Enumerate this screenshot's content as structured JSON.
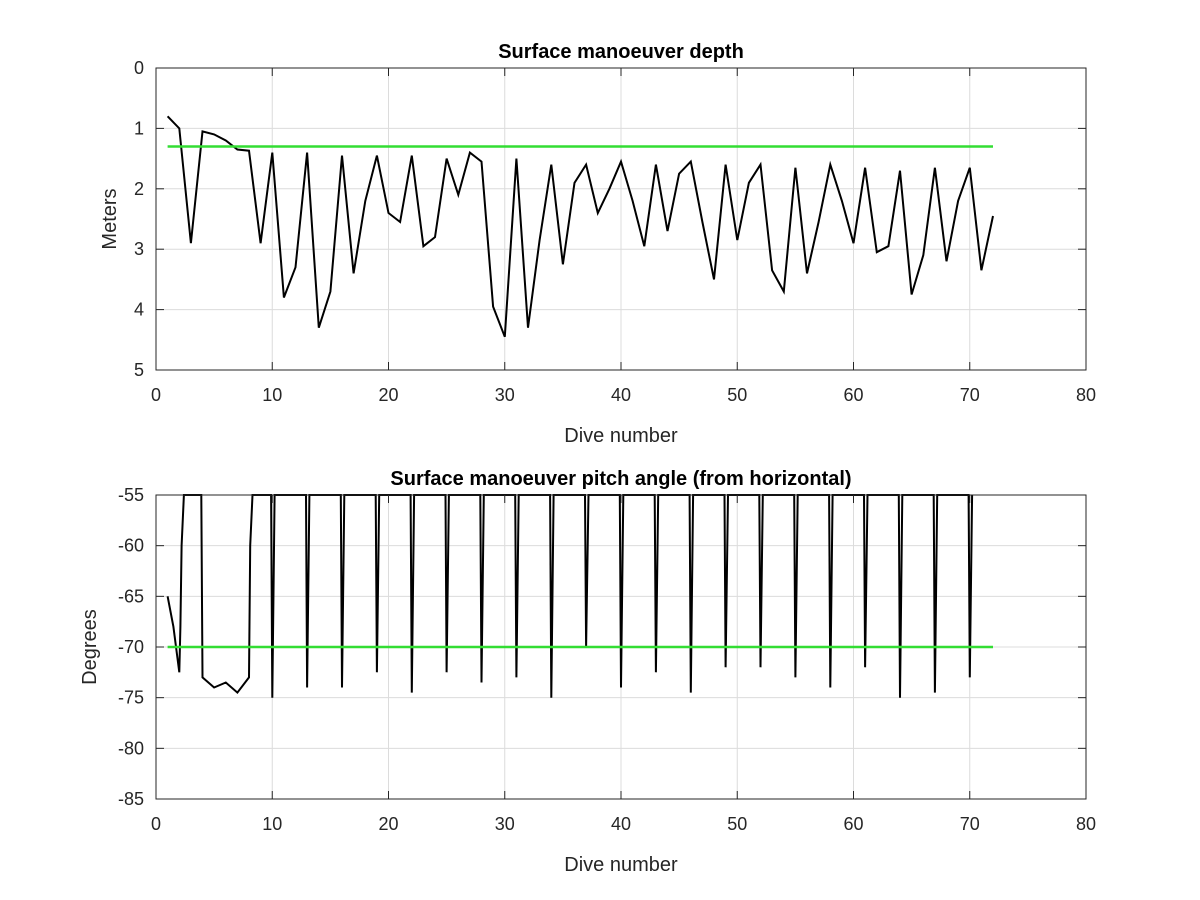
{
  "chart_data": [
    {
      "type": "line",
      "title": "Surface manoeuver depth",
      "xlabel": "Dive number",
      "ylabel": "Meters",
      "xlim": [
        0,
        80
      ],
      "ylim": [
        0,
        5
      ],
      "y_reversed": true,
      "grid": true,
      "xticks": [
        "0",
        "10",
        "20",
        "30",
        "40",
        "50",
        "60",
        "70",
        "80"
      ],
      "yticks": [
        "0",
        "1",
        "2",
        "3",
        "4",
        "5"
      ],
      "x": [
        1,
        2,
        3,
        4,
        5,
        6,
        7,
        8,
        9,
        10,
        11,
        12,
        13,
        14,
        15,
        16,
        17,
        18,
        19,
        20,
        21,
        22,
        23,
        24,
        25,
        26,
        27,
        28,
        29,
        30,
        31,
        32,
        33,
        34,
        35,
        36,
        37,
        38,
        39,
        40,
        41,
        42,
        43,
        44,
        45,
        46,
        47,
        48,
        49,
        50,
        51,
        52,
        53,
        54,
        55,
        56,
        57,
        58,
        59,
        60,
        61,
        62,
        63,
        64,
        65,
        66,
        67,
        68,
        69,
        70,
        71,
        72
      ],
      "series": [
        {
          "color": "#000000",
          "values": [
            0.8,
            1.0,
            2.9,
            1.05,
            1.1,
            1.2,
            1.35,
            1.37,
            2.9,
            1.4,
            3.8,
            3.3,
            1.4,
            4.3,
            3.7,
            1.45,
            3.4,
            2.2,
            1.45,
            2.4,
            2.55,
            1.45,
            2.95,
            2.8,
            1.5,
            2.1,
            1.4,
            1.55,
            3.95,
            4.45,
            1.5,
            4.3,
            2.85,
            1.6,
            3.25,
            1.9,
            1.6,
            2.4,
            2.0,
            1.55,
            2.2,
            2.95,
            1.6,
            2.7,
            1.75,
            1.55,
            2.55,
            3.5,
            1.6,
            2.85,
            1.9,
            1.6,
            3.35,
            3.7,
            1.65,
            3.4,
            2.55,
            1.6,
            2.2,
            2.9,
            1.65,
            3.05,
            2.95,
            1.7,
            3.75,
            3.1,
            1.65,
            3.2,
            2.2,
            1.65,
            3.35,
            2.45
          ]
        },
        {
          "color": "#33dd33",
          "values": [
            1.3,
            1.3
          ],
          "x": [
            1,
            72
          ]
        }
      ]
    },
    {
      "type": "line",
      "title": "Surface manoeuver pitch angle (from horizontal)",
      "xlabel": "Dive number",
      "ylabel": "Degrees",
      "xlim": [
        0,
        80
      ],
      "ylim": [
        -85,
        -55
      ],
      "grid": true,
      "xticks": [
        "0",
        "10",
        "20",
        "30",
        "40",
        "50",
        "60",
        "70",
        "80"
      ],
      "yticks": [
        "-55",
        "-60",
        "-65",
        "-70",
        "-75",
        "-80",
        "-85"
      ],
      "series": [
        {
          "color": "#000000",
          "x": [
            1,
            1.5,
            2,
            2.1,
            2.2,
            2.4,
            3.9,
            4,
            5,
            6,
            7,
            8,
            8.1,
            8.3,
            9.9,
            10,
            10.2,
            12.9,
            13,
            13.2,
            15.9,
            16,
            16.2,
            18.9,
            19,
            19.2,
            21.9,
            22,
            22.2,
            24.9,
            25,
            25.2,
            27.9,
            28,
            28.2,
            30.9,
            31,
            31.2,
            33.9,
            34,
            34.2,
            36.9,
            37,
            37.2,
            39.9,
            40,
            40.2,
            42.9,
            43,
            43.2,
            45.9,
            46,
            46.2,
            48.9,
            49,
            49.2,
            51.9,
            52,
            52.2,
            54.9,
            55,
            55.2,
            57.9,
            58,
            58.2,
            60.9,
            61,
            61.2,
            63.9,
            64,
            64.2,
            66.9,
            67,
            67.2,
            69.9,
            70,
            70.2
          ],
          "values": [
            -65,
            -68,
            -72.5,
            -68,
            -60,
            -55,
            -55,
            -73,
            -74,
            -73.5,
            -74.5,
            -73,
            -60,
            -55,
            -55,
            -75,
            -55,
            -55,
            -74,
            -55,
            -55,
            -74,
            -55,
            -55,
            -72.5,
            -55,
            -55,
            -74.5,
            -55,
            -55,
            -72.5,
            -55,
            -55,
            -73.5,
            -55,
            -55,
            -73,
            -55,
            -55,
            -75,
            -55,
            -55,
            -70,
            -55,
            -55,
            -74,
            -55,
            -55,
            -72.5,
            -55,
            -55,
            -74.5,
            -55,
            -55,
            -72,
            -55,
            -55,
            -72,
            -55,
            -55,
            -73,
            -55,
            -55,
            -74,
            -55,
            -55,
            -72,
            -55,
            -55,
            -75,
            -55,
            -55,
            -74.5,
            -55,
            -55,
            -73,
            -55
          ]
        },
        {
          "color": "#33dd33",
          "values": [
            -70,
            -70
          ],
          "x": [
            1,
            72
          ]
        }
      ]
    }
  ]
}
